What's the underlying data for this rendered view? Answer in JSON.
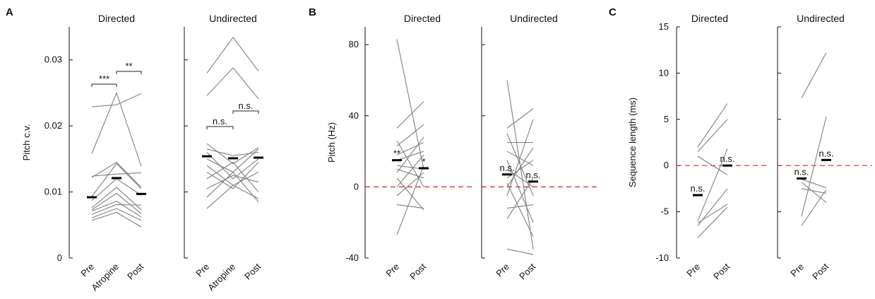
{
  "chart_data": [
    {
      "type": "line",
      "label": "A",
      "ylabel": "Pitch c.v.",
      "ylim": [
        0,
        0.035
      ],
      "yticks": [
        0,
        0.01,
        0.02,
        0.03
      ],
      "color": "#808080",
      "mean_color": "#000000",
      "subplots": [
        {
          "title": "Directed",
          "categories": [
            "Pre",
            "Atropine",
            "Post"
          ],
          "series": [
            {
              "values": [
                0.0229,
                0.0232,
                0.0249
              ]
            },
            {
              "values": [
                0.0158,
                0.025,
                0.0139
              ]
            },
            {
              "values": [
                0.0124,
                0.0127,
                0.0129
              ]
            },
            {
              "values": [
                0.0122,
                0.0145,
                0.0107
              ]
            },
            {
              "values": [
                0.0093,
                0.0143,
                0.0105
              ]
            },
            {
              "values": [
                0.0087,
                0.012,
                0.0095
              ]
            },
            {
              "values": [
                0.0076,
                0.0107,
                0.0073
              ]
            },
            {
              "values": [
                0.0073,
                0.0098,
                0.0067
              ]
            },
            {
              "values": [
                0.0071,
                0.0086,
                0.0062
              ]
            },
            {
              "values": [
                0.0066,
                0.0081,
                0.008
              ]
            },
            {
              "values": [
                0.0061,
                0.0075,
                0.0057
              ]
            },
            {
              "values": [
                0.0057,
                0.0069,
                0.0047
              ]
            }
          ],
          "means": [
            0.0092,
            0.0121,
            0.0097
          ],
          "annotations": [
            {
              "text": "***",
              "between": [
                0,
                1
              ]
            },
            {
              "text": "**",
              "between": [
                1,
                2
              ]
            }
          ]
        },
        {
          "title": "Undirected",
          "categories": [
            "Pre",
            "Atropine",
            "Post"
          ],
          "series": [
            {
              "values": [
                0.028,
                0.0334,
                0.0283
              ]
            },
            {
              "values": [
                0.0246,
                0.0288,
                0.0241
              ]
            },
            {
              "values": [
                0.0173,
                0.0143,
                0.0167
              ]
            },
            {
              "values": [
                0.0165,
                0.0155,
                0.016
              ]
            },
            {
              "values": [
                0.016,
                0.012,
                0.015
              ]
            },
            {
              "values": [
                0.015,
                0.013,
                0.0165
              ]
            },
            {
              "values": [
                0.014,
                0.011,
                0.013
              ]
            },
            {
              "values": [
                0.013,
                0.0105,
                0.0145
              ]
            },
            {
              "values": [
                0.012,
                0.0145,
                0.01
              ]
            },
            {
              "values": [
                0.0105,
                0.0125,
                0.0115
              ]
            },
            {
              "values": [
                0.0092,
                0.013,
                0.0085
              ]
            },
            {
              "values": [
                0.0075,
                0.011,
                0.009
              ]
            }
          ],
          "means": [
            0.0154,
            0.0151,
            0.0152
          ],
          "annotations": [
            {
              "text": "n.s.",
              "between": [
                0,
                1
              ]
            },
            {
              "text": "n.s.",
              "between": [
                1,
                2
              ]
            }
          ]
        }
      ]
    },
    {
      "type": "line",
      "label": "B",
      "ylabel": "Pitch (Hz)",
      "ylim": [
        -40,
        90
      ],
      "yticks": [
        -40,
        0,
        40,
        80
      ],
      "color": "#808080",
      "mean_color": "#000000",
      "refline": {
        "y": 0,
        "color": "#e02020",
        "style": "dashed"
      },
      "subplots": [
        {
          "title": "Directed",
          "categories": [
            "Pre",
            "Post"
          ],
          "series": [
            {
              "values": [
                83,
                10
              ]
            },
            {
              "values": [
                33,
                48
              ]
            },
            {
              "values": [
                26,
                0
              ]
            },
            {
              "values": [
                23,
                35
              ]
            },
            {
              "values": [
                18,
                25
              ]
            },
            {
              "values": [
                15,
                20
              ]
            },
            {
              "values": [
                12,
                10
              ]
            },
            {
              "values": [
                10,
                5
              ]
            },
            {
              "values": [
                8,
                28
              ]
            },
            {
              "values": [
                5,
                -13
              ]
            },
            {
              "values": [
                0,
                18
              ]
            },
            {
              "values": [
                -5,
                8
              ]
            },
            {
              "values": [
                -10,
                -12
              ]
            },
            {
              "values": [
                -27,
                12
              ]
            }
          ],
          "means": [
            15,
            10.5
          ],
          "annotations": [
            {
              "text": "**",
              "at": 0
            },
            {
              "text": "*",
              "at": 1
            }
          ]
        },
        {
          "title": "Undirected",
          "categories": [
            "Pre",
            "Post"
          ],
          "series": [
            {
              "values": [
                60,
                -35
              ]
            },
            {
              "values": [
                33,
                44
              ]
            },
            {
              "values": [
                30,
                -5
              ]
            },
            {
              "values": [
                25,
                25
              ]
            },
            {
              "values": [
                20,
                12
              ]
            },
            {
              "values": [
                15,
                -20
              ]
            },
            {
              "values": [
                10,
                0
              ]
            },
            {
              "values": [
                5,
                15
              ]
            },
            {
              "values": [
                2,
                -28
              ]
            },
            {
              "values": [
                0,
                22
              ]
            },
            {
              "values": [
                -5,
                38
              ]
            },
            {
              "values": [
                -12,
                -10
              ]
            },
            {
              "values": [
                -18,
                5
              ]
            },
            {
              "values": [
                -35,
                -38
              ]
            }
          ],
          "means": [
            7,
            3
          ],
          "annotations": [
            {
              "text": "n.s.",
              "at": 0
            },
            {
              "text": "n.s.",
              "at": 1
            }
          ]
        }
      ]
    },
    {
      "type": "line",
      "label": "C",
      "ylabel": "Sequence length (ms)",
      "ylim": [
        -10,
        15
      ],
      "yticks": [
        -10,
        -5,
        0,
        5,
        10,
        15
      ],
      "color": "#808080",
      "mean_color": "#000000",
      "refline": {
        "y": 0,
        "color": "#e02020",
        "style": "dashed"
      },
      "subplots": [
        {
          "title": "Directed",
          "categories": [
            "Pre",
            "Post"
          ],
          "series": [
            {
              "values": [
                2,
                6.7
              ]
            },
            {
              "values": [
                1.5,
                5
              ]
            },
            {
              "values": [
                1,
                -1
              ]
            },
            {
              "values": [
                -6,
                1.8
              ]
            },
            {
              "values": [
                -6.5,
                -2.5
              ]
            },
            {
              "values": [
                -7.8,
                -4.5
              ]
            },
            {
              "values": [
                -6.2,
                -4.2
              ]
            }
          ],
          "means": [
            -3.2,
            0
          ],
          "annotations": [
            {
              "text": "n.s.",
              "at": 0
            },
            {
              "text": "n.s.",
              "at": 1
            }
          ]
        },
        {
          "title": "Undirected",
          "categories": [
            "Pre",
            "Post"
          ],
          "series": [
            {
              "values": [
                7.3,
                12.2
              ]
            },
            {
              "values": [
                -5.5,
                5.3
              ]
            },
            {
              "values": [
                -1.5,
                -2.4
              ]
            },
            {
              "values": [
                -2.5,
                -3
              ]
            },
            {
              "values": [
                -1.8,
                -4
              ]
            },
            {
              "values": [
                -6.5,
                -2.6
              ]
            }
          ],
          "means": [
            -1.4,
            0.6
          ],
          "annotations": [
            {
              "text": "n.s.",
              "at": 0
            },
            {
              "text": "n.s.",
              "at": 1
            }
          ]
        }
      ]
    }
  ]
}
